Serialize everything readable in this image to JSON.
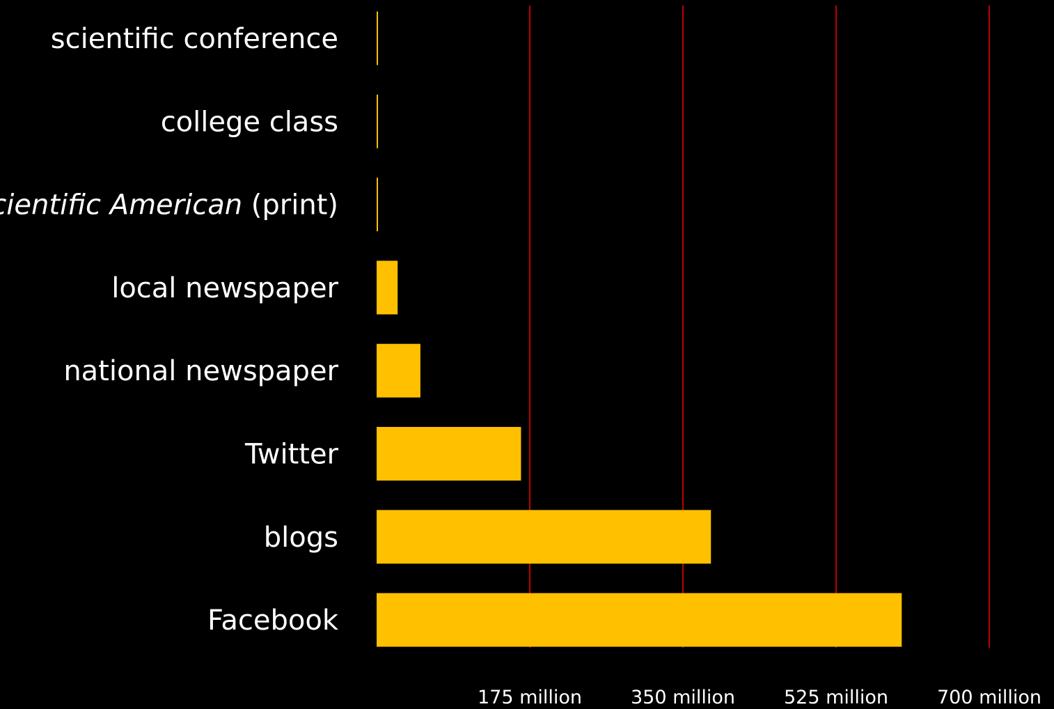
{
  "chart_data": {
    "type": "bar",
    "orientation": "horizontal",
    "title": "",
    "xlabel": "",
    "ylabel": "",
    "categories": [
      {
        "label": "scientific conference",
        "italic_part": "",
        "rest": ""
      },
      {
        "label": "college class",
        "italic_part": "",
        "rest": ""
      },
      {
        "label": "Scientific American (print)",
        "italic_part": "Scientific American",
        "rest": " (print)"
      },
      {
        "label": "local newspaper",
        "italic_part": "",
        "rest": ""
      },
      {
        "label": "national newspaper",
        "italic_part": "",
        "rest": ""
      },
      {
        "label": "Twitter",
        "italic_part": "",
        "rest": ""
      },
      {
        "label": "blogs",
        "italic_part": "",
        "rest": ""
      },
      {
        "label": "Facebook",
        "italic_part": "",
        "rest": ""
      }
    ],
    "values": [
      1000,
      2000,
      8000,
      24000000,
      50000000,
      165000000,
      382000000,
      600000000
    ],
    "xlim": [
      0,
      700000000
    ],
    "ticks": [
      {
        "value": 175000000,
        "label": "175 million"
      },
      {
        "value": 350000000,
        "label": "350 million"
      },
      {
        "value": 525000000,
        "label": "525 million"
      },
      {
        "value": 700000000,
        "label": "700 million"
      }
    ],
    "grid": true,
    "colors": {
      "background": "#000000",
      "bar": "#FFC000",
      "grid": "#C00000",
      "text": "#FFFFFF"
    }
  }
}
